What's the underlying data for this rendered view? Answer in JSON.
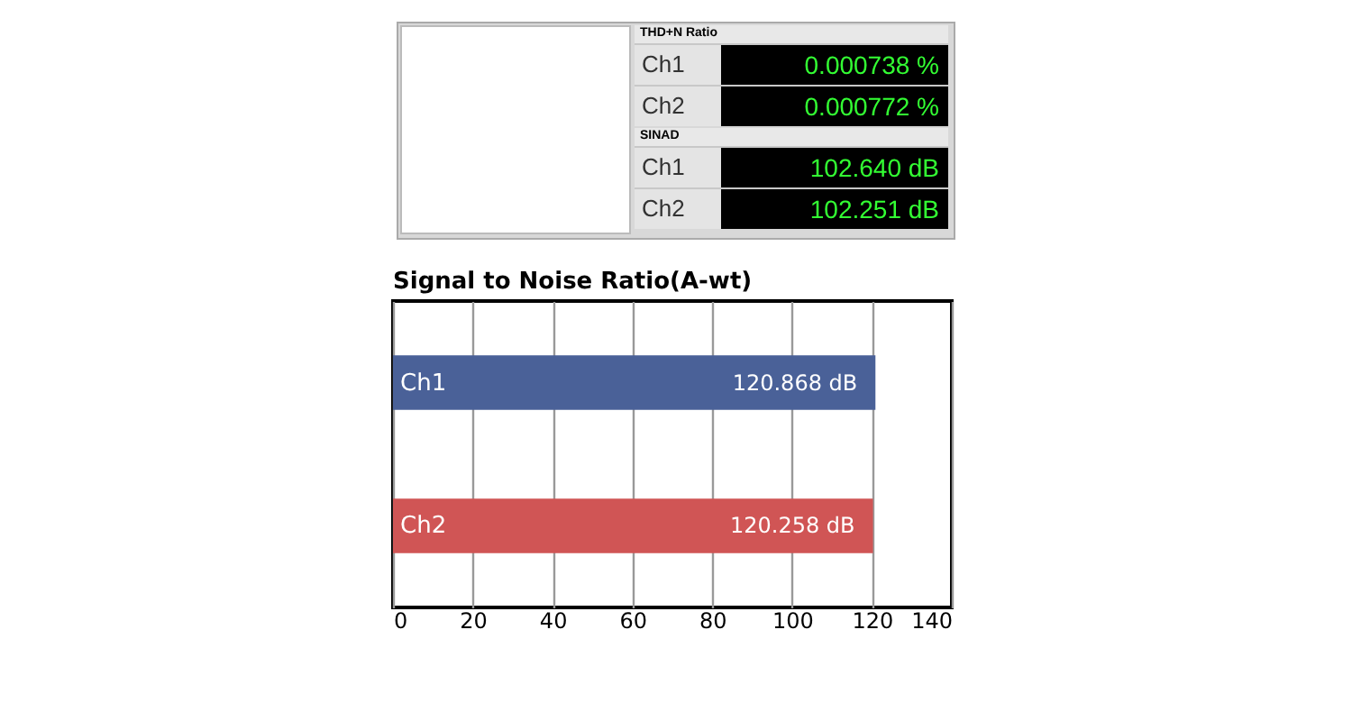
{
  "chart_data": [
    {
      "type": "other",
      "title": "THD+N Ratio",
      "annotations": [
        "Ch1",
        "0.000738 %",
        "Ch2",
        "0.000772 %"
      ]
    },
    {
      "type": "other",
      "title": "SINAD",
      "annotations": [
        "Ch1",
        "102.640 dB",
        "Ch2",
        "102.251 dB"
      ]
    },
    {
      "type": "bar",
      "title": "Signal to Noise Ratio(A-wt)",
      "orientation": "horizontal",
      "categories": [
        "Ch1",
        "Ch2"
      ],
      "values": [
        120.868,
        120.258
      ],
      "colors": [
        "#4a6198",
        "#d05555"
      ],
      "value_labels": [
        "120.868 dB",
        "120.258 dB"
      ],
      "xlim": [
        0,
        140
      ],
      "xticks": [
        0,
        20,
        40,
        60,
        80,
        100,
        120,
        140
      ],
      "grid": "x"
    }
  ]
}
